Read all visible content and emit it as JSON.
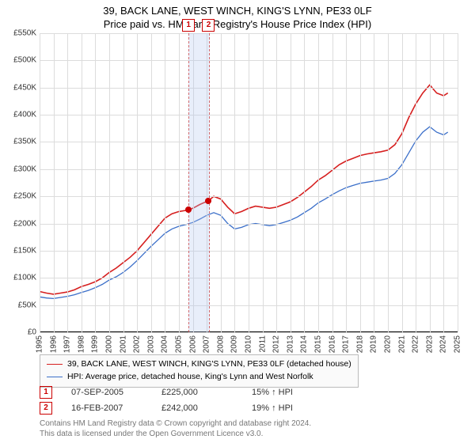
{
  "header": {
    "address": "39, BACK LANE, WEST WINCH, KING'S LYNN, PE33 0LF",
    "subtitle": "Price paid vs. HM Land Registry's House Price Index (HPI)"
  },
  "chart": {
    "type": "line",
    "background_color": "#ffffff",
    "grid_color": "#dcdcdc",
    "axis_color": "#000000",
    "label_color": "#333333",
    "label_fontsize": 10,
    "xlim": [
      1995,
      2025
    ],
    "ylim": [
      0,
      550000
    ],
    "ytick_step": 50000,
    "yticks": [
      "£0",
      "£50K",
      "£100K",
      "£150K",
      "£200K",
      "£250K",
      "£300K",
      "£350K",
      "£400K",
      "£450K",
      "£500K",
      "£550K"
    ],
    "xticks": [
      "1995",
      "1996",
      "1997",
      "1998",
      "1999",
      "2000",
      "2001",
      "2002",
      "2003",
      "2004",
      "2005",
      "2006",
      "2007",
      "2008",
      "2009",
      "2010",
      "2011",
      "2012",
      "2013",
      "2014",
      "2015",
      "2016",
      "2017",
      "2018",
      "2019",
      "2020",
      "2021",
      "2022",
      "2023",
      "2024",
      "2025"
    ],
    "series": [
      {
        "name": "39, BACK LANE, WEST WINCH, KING'S LYNN, PE33 0LF (detached house)",
        "color": "#d61f1f",
        "line_width": 1.6,
        "data": [
          [
            1995.0,
            75000
          ],
          [
            1995.5,
            72000
          ],
          [
            1996.0,
            70000
          ],
          [
            1996.5,
            72000
          ],
          [
            1997.0,
            74000
          ],
          [
            1997.5,
            78000
          ],
          [
            1998.0,
            84000
          ],
          [
            1998.5,
            88000
          ],
          [
            1999.0,
            93000
          ],
          [
            1999.5,
            100000
          ],
          [
            2000.0,
            110000
          ],
          [
            2000.5,
            118000
          ],
          [
            2001.0,
            128000
          ],
          [
            2001.5,
            138000
          ],
          [
            2002.0,
            150000
          ],
          [
            2002.5,
            165000
          ],
          [
            2003.0,
            180000
          ],
          [
            2003.5,
            195000
          ],
          [
            2004.0,
            210000
          ],
          [
            2004.5,
            218000
          ],
          [
            2005.0,
            222000
          ],
          [
            2005.69,
            225000
          ],
          [
            2006.0,
            228000
          ],
          [
            2006.5,
            235000
          ],
          [
            2007.13,
            242000
          ],
          [
            2007.5,
            250000
          ],
          [
            2008.0,
            245000
          ],
          [
            2008.5,
            230000
          ],
          [
            2009.0,
            218000
          ],
          [
            2009.5,
            222000
          ],
          [
            2010.0,
            228000
          ],
          [
            2010.5,
            232000
          ],
          [
            2011.0,
            230000
          ],
          [
            2011.5,
            228000
          ],
          [
            2012.0,
            230000
          ],
          [
            2012.5,
            235000
          ],
          [
            2013.0,
            240000
          ],
          [
            2013.5,
            248000
          ],
          [
            2014.0,
            258000
          ],
          [
            2014.5,
            268000
          ],
          [
            2015.0,
            280000
          ],
          [
            2015.5,
            288000
          ],
          [
            2016.0,
            298000
          ],
          [
            2016.5,
            308000
          ],
          [
            2017.0,
            315000
          ],
          [
            2017.5,
            320000
          ],
          [
            2018.0,
            325000
          ],
          [
            2018.5,
            328000
          ],
          [
            2019.0,
            330000
          ],
          [
            2019.5,
            332000
          ],
          [
            2020.0,
            335000
          ],
          [
            2020.5,
            345000
          ],
          [
            2021.0,
            365000
          ],
          [
            2021.5,
            395000
          ],
          [
            2022.0,
            420000
          ],
          [
            2022.5,
            440000
          ],
          [
            2023.0,
            455000
          ],
          [
            2023.5,
            440000
          ],
          [
            2024.0,
            435000
          ],
          [
            2024.3,
            440000
          ]
        ]
      },
      {
        "name": "HPI: Average price, detached house, King's Lynn and West Norfolk",
        "color": "#3b6fc9",
        "line_width": 1.3,
        "data": [
          [
            1995.0,
            65000
          ],
          [
            1995.5,
            63000
          ],
          [
            1996.0,
            62000
          ],
          [
            1996.5,
            64000
          ],
          [
            1997.0,
            66000
          ],
          [
            1997.5,
            69000
          ],
          [
            1998.0,
            73000
          ],
          [
            1998.5,
            77000
          ],
          [
            1999.0,
            82000
          ],
          [
            1999.5,
            88000
          ],
          [
            2000.0,
            96000
          ],
          [
            2000.5,
            102000
          ],
          [
            2001.0,
            110000
          ],
          [
            2001.5,
            120000
          ],
          [
            2002.0,
            132000
          ],
          [
            2002.5,
            145000
          ],
          [
            2003.0,
            158000
          ],
          [
            2003.5,
            170000
          ],
          [
            2004.0,
            182000
          ],
          [
            2004.5,
            190000
          ],
          [
            2005.0,
            195000
          ],
          [
            2005.5,
            198000
          ],
          [
            2006.0,
            202000
          ],
          [
            2006.5,
            208000
          ],
          [
            2007.0,
            215000
          ],
          [
            2007.5,
            220000
          ],
          [
            2008.0,
            215000
          ],
          [
            2008.5,
            200000
          ],
          [
            2009.0,
            190000
          ],
          [
            2009.5,
            193000
          ],
          [
            2010.0,
            198000
          ],
          [
            2010.5,
            200000
          ],
          [
            2011.0,
            198000
          ],
          [
            2011.5,
            196000
          ],
          [
            2012.0,
            198000
          ],
          [
            2012.5,
            202000
          ],
          [
            2013.0,
            206000
          ],
          [
            2013.5,
            212000
          ],
          [
            2014.0,
            220000
          ],
          [
            2014.5,
            228000
          ],
          [
            2015.0,
            238000
          ],
          [
            2015.5,
            245000
          ],
          [
            2016.0,
            253000
          ],
          [
            2016.5,
            260000
          ],
          [
            2017.0,
            266000
          ],
          [
            2017.5,
            270000
          ],
          [
            2018.0,
            274000
          ],
          [
            2018.5,
            276000
          ],
          [
            2019.0,
            278000
          ],
          [
            2019.5,
            280000
          ],
          [
            2020.0,
            283000
          ],
          [
            2020.5,
            292000
          ],
          [
            2021.0,
            308000
          ],
          [
            2021.5,
            330000
          ],
          [
            2022.0,
            352000
          ],
          [
            2022.5,
            368000
          ],
          [
            2023.0,
            378000
          ],
          [
            2023.5,
            368000
          ],
          [
            2024.0,
            363000
          ],
          [
            2024.3,
            368000
          ]
        ]
      }
    ],
    "sale_band": {
      "from": 2005.69,
      "to": 2007.13
    },
    "sale_markers": [
      {
        "id": "1",
        "x": 2005.69,
        "y": 225000
      },
      {
        "id": "2",
        "x": 2007.13,
        "y": 242000
      }
    ]
  },
  "legend": {
    "border_color": "#bbbbbb",
    "bg": "#fafafa"
  },
  "sales": [
    {
      "id": "1",
      "date": "07-SEP-2005",
      "price": "£225,000",
      "vs_hpi": "15% ↑ HPI"
    },
    {
      "id": "2",
      "date": "16-FEB-2007",
      "price": "£242,000",
      "vs_hpi": "19% ↑ HPI"
    }
  ],
  "footnote": {
    "line1": "Contains HM Land Registry data © Crown copyright and database right 2024.",
    "line2": "This data is licensed under the Open Government Licence v3.0."
  }
}
